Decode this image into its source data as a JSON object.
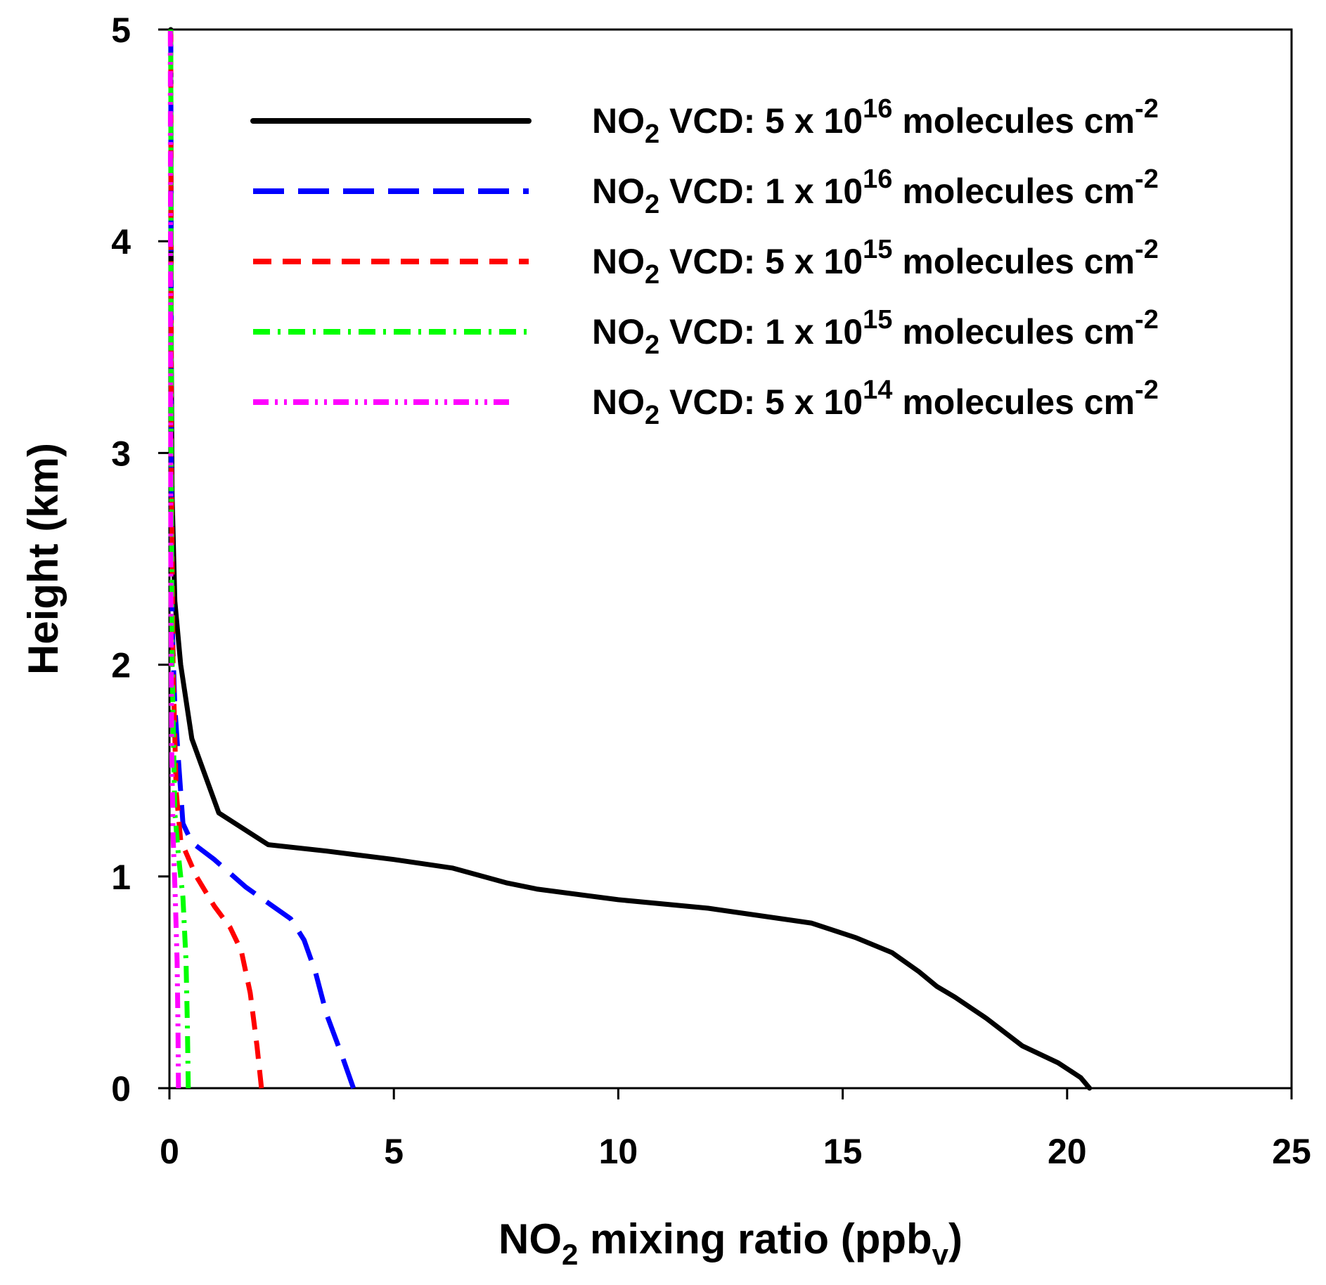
{
  "chart_data": {
    "type": "line",
    "title": "",
    "xlabel": {
      "base": "NO",
      "sub": "2",
      "rest": " mixing ratio (ppb",
      "sub2": "v",
      "end": ")"
    },
    "ylabel": "Height (km)",
    "xlim": [
      0,
      25
    ],
    "ylim": [
      0,
      5
    ],
    "xticks": [
      "0",
      "5",
      "10",
      "15",
      "20",
      "25"
    ],
    "yticks": [
      "0",
      "1",
      "2",
      "3",
      "4",
      "5"
    ],
    "legend_position": "top-right",
    "series": [
      {
        "name": "NO2 VCD: 5 x 10^16 molecules cm^-2",
        "label": {
          "pre": "NO",
          "sub": "2",
          "mid": " VCD: 5 x 10",
          "sup": "16",
          "post": " molecules cm",
          "sup2": "-2"
        },
        "color": "#000000",
        "style": "solid",
        "x": [
          20.5,
          20.3,
          19.8,
          19.0,
          18.2,
          17.5,
          17.1,
          16.7,
          16.1,
          15.3,
          14.3,
          12.0,
          10.0,
          8.2,
          7.5,
          6.3,
          5.0,
          3.5,
          2.2,
          1.1,
          0.5,
          0.25,
          0.12,
          0.06,
          0.04,
          0.03
        ],
        "y": [
          0,
          0.05,
          0.12,
          0.2,
          0.33,
          0.43,
          0.48,
          0.55,
          0.64,
          0.71,
          0.78,
          0.85,
          0.89,
          0.94,
          0.97,
          1.04,
          1.08,
          1.12,
          1.15,
          1.3,
          1.65,
          2.0,
          2.3,
          2.8,
          3.5,
          5.0
        ]
      },
      {
        "name": "NO2 VCD: 1 x 10^16 molecules cm^-2",
        "label": {
          "pre": "NO",
          "sub": "2",
          "mid": " VCD: 1 x 10",
          "sup": "16",
          "post": " molecules cm",
          "sup2": "-2"
        },
        "color": "#0000ff",
        "style": "dashed",
        "x": [
          4.1,
          3.85,
          3.5,
          3.25,
          3.0,
          2.7,
          2.3,
          1.7,
          1.0,
          0.5,
          0.3,
          0.2,
          0.12,
          0.06,
          0.04,
          0.03
        ],
        "y": [
          0,
          0.15,
          0.35,
          0.55,
          0.7,
          0.8,
          0.86,
          0.95,
          1.08,
          1.16,
          1.25,
          1.55,
          1.8,
          2.2,
          3.0,
          5.0
        ]
      },
      {
        "name": "NO2 VCD: 5 x 10^15 molecules cm^-2",
        "label": {
          "pre": "NO",
          "sub": "2",
          "mid": " VCD: 5 x 10",
          "sup": "15",
          "post": " molecules cm",
          "sup2": "-2"
        },
        "color": "#ff0000",
        "style": "dashed-short",
        "x": [
          2.05,
          1.95,
          1.8,
          1.6,
          1.35,
          1.0,
          0.6,
          0.25,
          0.15,
          0.08,
          0.04,
          0.03
        ],
        "y": [
          0,
          0.2,
          0.45,
          0.65,
          0.76,
          0.86,
          1.0,
          1.17,
          1.4,
          2.0,
          3.0,
          5.0
        ]
      },
      {
        "name": "NO2 VCD: 1 x 10^15 molecules cm^-2",
        "label": {
          "pre": "NO",
          "sub": "2",
          "mid": " VCD: 1 x 10",
          "sup": "15",
          "post": " molecules cm",
          "sup2": "-2"
        },
        "color": "#00ff00",
        "style": "dash-dot",
        "x": [
          0.42,
          0.4,
          0.37,
          0.3,
          0.2,
          0.12,
          0.06,
          0.04,
          0.03
        ],
        "y": [
          0,
          0.3,
          0.6,
          0.9,
          1.1,
          1.3,
          2.0,
          3.0,
          5.0
        ]
      },
      {
        "name": "NO2 VCD: 5 x 10^14 molecules cm^-2",
        "label": {
          "pre": "NO",
          "sub": "2",
          "mid": " VCD: 5 x 10",
          "sup": "14",
          "post": " molecules cm",
          "sup2": "-2"
        },
        "color": "#ff00ff",
        "style": "dash-dot-dot",
        "x": [
          0.2,
          0.19,
          0.17,
          0.13,
          0.08,
          0.05,
          0.03,
          0.02
        ],
        "y": [
          0,
          0.3,
          0.6,
          0.9,
          1.2,
          1.6,
          2.5,
          5.0
        ]
      }
    ]
  }
}
